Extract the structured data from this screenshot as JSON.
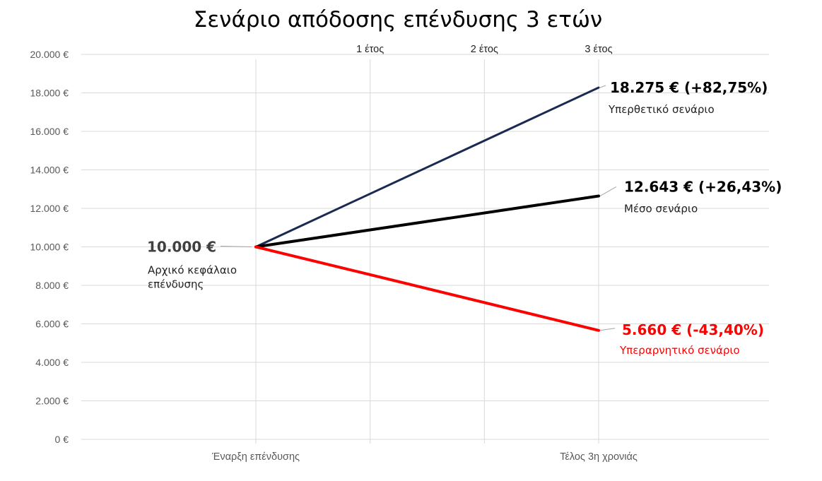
{
  "chart_data": {
    "type": "line",
    "title": "Σενάριο απόδοσης επένδυσης 3 ετών",
    "y_ticks": [
      "0 €",
      "2.000 €",
      "4.000 €",
      "6.000 €",
      "8.000 €",
      "10.000 €",
      "12.000 €",
      "14.000 €",
      "16.000 €",
      "18.000 €",
      "20.000 €"
    ],
    "ylim": [
      0,
      20000
    ],
    "grid": true,
    "top_ticks": [
      {
        "label": "1 έτος",
        "year": 1
      },
      {
        "label": "2 έτος",
        "year": 2
      },
      {
        "label": "3 έτος",
        "year": 3
      }
    ],
    "x_labels": [
      {
        "label": "Έναρξη επένδυσης",
        "year": 0
      },
      {
        "label": "Τέλος 3η χρονιάς",
        "year": 3
      }
    ],
    "start": {
      "value": 10000,
      "value_label": "10.000 €",
      "description_lines": [
        "Αρχικό κεφάλαιο",
        "επένδυσης"
      ],
      "color": "#404040"
    },
    "series": [
      {
        "x": [
          0,
          3
        ],
        "values": [
          10000,
          18275
        ],
        "value_label": "18.275 €  (+82,75%)",
        "description": "Υπερθετικό σενάριο",
        "color": "#1a2a52",
        "label_color": "#000000"
      },
      {
        "x": [
          0,
          3
        ],
        "values": [
          10000,
          12643
        ],
        "value_label": "12.643 € (+26,43%)",
        "description": "Μέσο σενάριο",
        "color": "#000000",
        "label_color": "#000000"
      },
      {
        "x": [
          0,
          3
        ],
        "values": [
          10000,
          5660
        ],
        "value_label": "5.660 € (-43,40%)",
        "description": "Υπεραρνητικό σενάριο",
        "color": "#ff0000",
        "label_color": "#ff0000"
      }
    ]
  }
}
